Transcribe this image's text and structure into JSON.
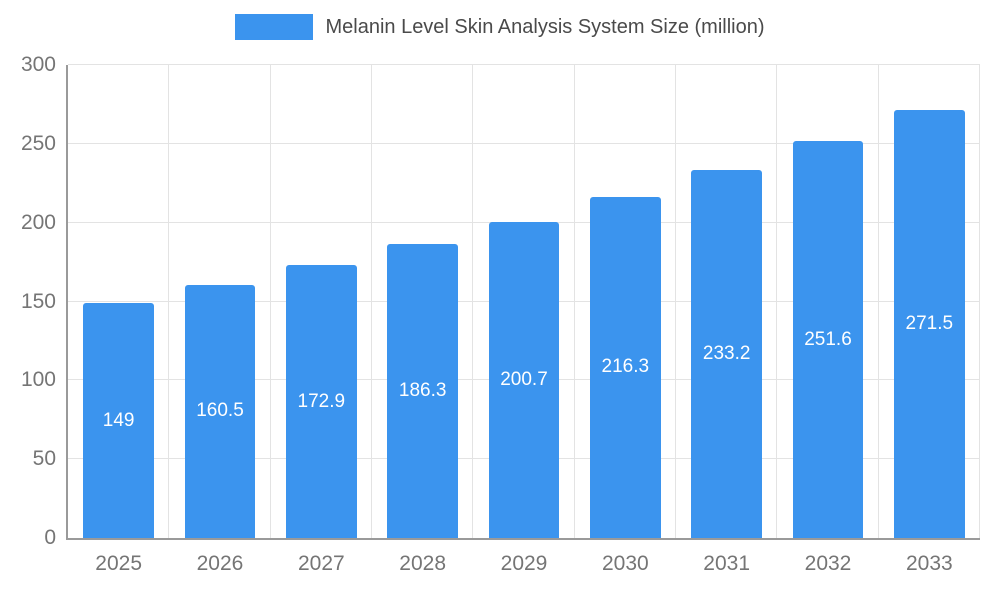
{
  "chart_data": {
    "type": "bar",
    "title": "Melanin Level Skin Analysis System Size (million)",
    "categories": [
      "2025",
      "2026",
      "2027",
      "2028",
      "2029",
      "2030",
      "2031",
      "2032",
      "2033"
    ],
    "values": [
      149,
      160.5,
      172.9,
      186.3,
      200.7,
      216.3,
      233.2,
      251.6,
      271.5
    ],
    "value_labels": [
      "149",
      "160.5",
      "172.9",
      "186.3",
      "200.7",
      "216.3",
      "233.2",
      "251.6",
      "271.5"
    ],
    "xlabel": "",
    "ylabel": "",
    "ylim": [
      0,
      300
    ],
    "yticks": [
      0,
      50,
      100,
      150,
      200,
      250,
      300
    ],
    "grid": "on",
    "legend_position": "top-center",
    "bar_color": "#3b94ee",
    "label_color": "#ffffff",
    "axis_color": "#9a9a9a",
    "grid_color": "#e3e3e3",
    "tick_label_color": "#757575"
  }
}
